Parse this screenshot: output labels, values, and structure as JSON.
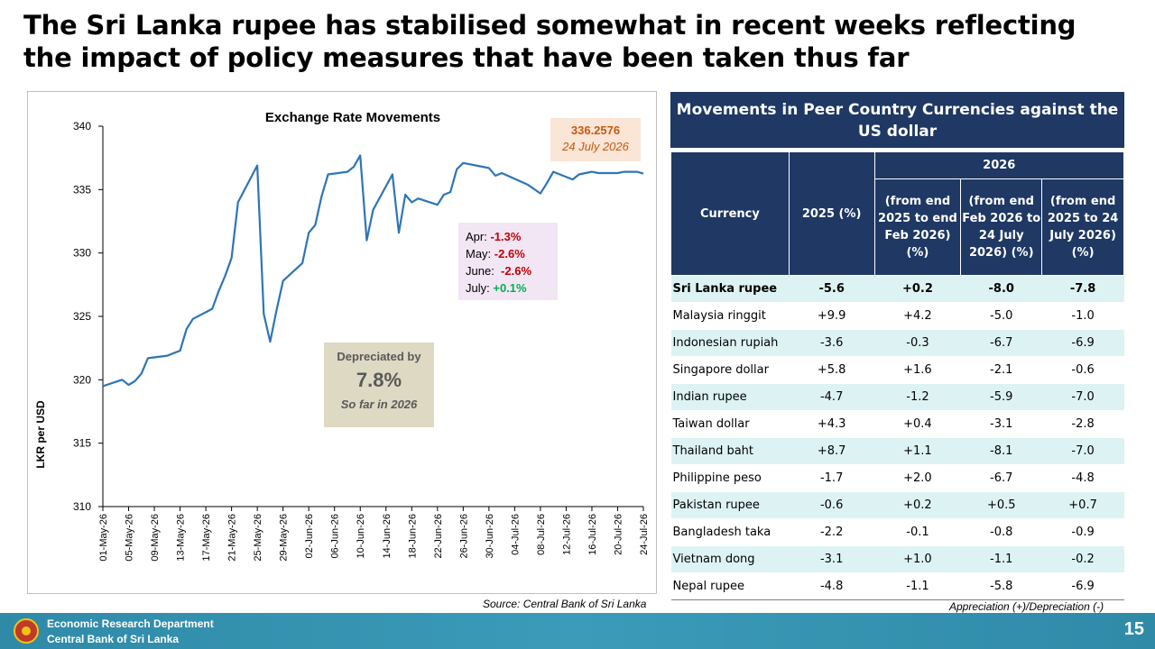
{
  "headline": {
    "line1": "The Sri Lanka rupee has stabilised somewhat in recent weeks reflecting",
    "line2": "the impact of policy measures that have been taken thus far"
  },
  "chart_data": {
    "type": "line",
    "title": "Exchange Rate Movements",
    "ylabel": "LKR per USD",
    "xlabel": "",
    "ylim": [
      310,
      340
    ],
    "yticks": [
      "310",
      "315",
      "320",
      "325",
      "330",
      "335",
      "340"
    ],
    "x_tick_labels": [
      "01-May-26",
      "05-May-26",
      "09-May-26",
      "13-May-26",
      "17-May-26",
      "21-May-26",
      "25-May-26",
      "29-May-26",
      "02-Jun-26",
      "06-Jun-26",
      "10-Jun-26",
      "14-Jun-26",
      "18-Jun-26",
      "22-Jun-26",
      "26-Jun-26",
      "30-Jun-26",
      "04-Jul-26",
      "08-Jul-26",
      "12-Jul-26",
      "16-Jul-26",
      "20-Jul-26",
      "24-Jul-26"
    ],
    "series": [
      {
        "color": "#2e75b6",
        "points": [
          {
            "x": "2026-05-01",
            "y": 319.5
          },
          {
            "x": "2026-05-04",
            "y": 320.0
          },
          {
            "x": "2026-05-05",
            "y": 319.6
          },
          {
            "x": "2026-05-06",
            "y": 319.9
          },
          {
            "x": "2026-05-07",
            "y": 320.5
          },
          {
            "x": "2026-05-08",
            "y": 321.7
          },
          {
            "x": "2026-05-11",
            "y": 321.9
          },
          {
            "x": "2026-05-12",
            "y": 322.1
          },
          {
            "x": "2026-05-13",
            "y": 322.3
          },
          {
            "x": "2026-05-14",
            "y": 324.0
          },
          {
            "x": "2026-05-15",
            "y": 324.8
          },
          {
            "x": "2026-05-18",
            "y": 325.6
          },
          {
            "x": "2026-05-19",
            "y": 327.0
          },
          {
            "x": "2026-05-20",
            "y": 328.2
          },
          {
            "x": "2026-05-21",
            "y": 329.6
          },
          {
            "x": "2026-05-22",
            "y": 334.0
          },
          {
            "x": "2026-05-25",
            "y": 336.9
          },
          {
            "x": "2026-05-26",
            "y": 325.2
          },
          {
            "x": "2026-05-27",
            "y": 323.0
          },
          {
            "x": "2026-05-28",
            "y": 325.5
          },
          {
            "x": "2026-05-29",
            "y": 327.8
          },
          {
            "x": "2026-06-01",
            "y": 329.2
          },
          {
            "x": "2026-06-02",
            "y": 331.6
          },
          {
            "x": "2026-06-03",
            "y": 332.2
          },
          {
            "x": "2026-06-04",
            "y": 334.5
          },
          {
            "x": "2026-06-05",
            "y": 336.2
          },
          {
            "x": "2026-06-08",
            "y": 336.4
          },
          {
            "x": "2026-06-09",
            "y": 336.8
          },
          {
            "x": "2026-06-10",
            "y": 337.7
          },
          {
            "x": "2026-06-11",
            "y": 331.0
          },
          {
            "x": "2026-06-12",
            "y": 333.4
          },
          {
            "x": "2026-06-15",
            "y": 336.2
          },
          {
            "x": "2026-06-16",
            "y": 331.6
          },
          {
            "x": "2026-06-17",
            "y": 334.6
          },
          {
            "x": "2026-06-18",
            "y": 334.0
          },
          {
            "x": "2026-06-19",
            "y": 334.3
          },
          {
            "x": "2026-06-22",
            "y": 333.8
          },
          {
            "x": "2026-06-23",
            "y": 334.6
          },
          {
            "x": "2026-06-24",
            "y": 334.8
          },
          {
            "x": "2026-06-25",
            "y": 336.6
          },
          {
            "x": "2026-06-26",
            "y": 337.1
          },
          {
            "x": "2026-06-29",
            "y": 336.8
          },
          {
            "x": "2026-06-30",
            "y": 336.7
          },
          {
            "x": "2026-07-01",
            "y": 336.1
          },
          {
            "x": "2026-07-02",
            "y": 336.3
          },
          {
            "x": "2026-07-06",
            "y": 335.4
          },
          {
            "x": "2026-07-08",
            "y": 334.7
          },
          {
            "x": "2026-07-09",
            "y": 335.5
          },
          {
            "x": "2026-07-10",
            "y": 336.4
          },
          {
            "x": "2026-07-13",
            "y": 335.8
          },
          {
            "x": "2026-07-14",
            "y": 336.2
          },
          {
            "x": "2026-07-15",
            "y": 336.3
          },
          {
            "x": "2026-07-16",
            "y": 336.4
          },
          {
            "x": "2026-07-17",
            "y": 336.3
          },
          {
            "x": "2026-07-20",
            "y": 336.3
          },
          {
            "x": "2026-07-21",
            "y": 336.4
          },
          {
            "x": "2026-07-22",
            "y": 336.4
          },
          {
            "x": "2026-07-23",
            "y": 336.4
          },
          {
            "x": "2026-07-24",
            "y": 336.2576
          }
        ]
      }
    ]
  },
  "annotations": {
    "latest_value": "336.2576",
    "latest_date": "24 July 2026",
    "monthly": [
      {
        "label": "Apr:",
        "value": "-1.3%",
        "sign": "neg"
      },
      {
        "label": "May:",
        "value": "-2.6%",
        "sign": "neg"
      },
      {
        "label": "June:",
        "value": "-2.6%",
        "sign": "neg"
      },
      {
        "label": "July:",
        "value": "+0.1%",
        "sign": "pos"
      }
    ],
    "depreciation_title": "Depreciated by",
    "depreciation_value": "7.8%",
    "depreciation_note": "So far in 2026"
  },
  "source": "Source: Central Bank of Sri Lanka",
  "table": {
    "title": "Movements in Peer Country Currencies against the US dollar",
    "col_currency": "Currency",
    "col_2025": "2025 (%)",
    "group_2026": "2026",
    "sub_headers": [
      "(from end 2025 to end Feb 2026) (%)",
      "(from end Feb 2026 to 24 July 2026) (%)",
      "(from end 2025 to 24 July 2026) (%)"
    ],
    "rows": [
      {
        "name": "Sri Lanka rupee",
        "y2025": "-5.6",
        "c1": "+0.2",
        "c2": "-8.0",
        "c3": "-7.8"
      },
      {
        "name": "Malaysia ringgit",
        "y2025": "+9.9",
        "c1": "+4.2",
        "c2": "-5.0",
        "c3": "-1.0"
      },
      {
        "name": "Indonesian rupiah",
        "y2025": "-3.6",
        "c1": "-0.3",
        "c2": "-6.7",
        "c3": "-6.9"
      },
      {
        "name": "Singapore dollar",
        "y2025": "+5.8",
        "c1": "+1.6",
        "c2": "-2.1",
        "c3": "-0.6"
      },
      {
        "name": "Indian rupee",
        "y2025": "-4.7",
        "c1": "-1.2",
        "c2": "-5.9",
        "c3": "-7.0"
      },
      {
        "name": "Taiwan dollar",
        "y2025": "+4.3",
        "c1": "+0.4",
        "c2": "-3.1",
        "c3": "-2.8"
      },
      {
        "name": "Thailand baht",
        "y2025": "+8.7",
        "c1": "+1.1",
        "c2": "-8.1",
        "c3": "-7.0"
      },
      {
        "name": "Philippine peso",
        "y2025": "-1.7",
        "c1": "+2.0",
        "c2": "-6.7",
        "c3": "-4.8"
      },
      {
        "name": "Pakistan rupee",
        "y2025": "-0.6",
        "c1": "+0.2",
        "c2": "+0.5",
        "c3": "+0.7"
      },
      {
        "name": "Bangladesh taka",
        "y2025": "-2.2",
        "c1": "-0.1",
        "c2": "-0.8",
        "c3": "-0.9"
      },
      {
        "name": "Vietnam dong",
        "y2025": "-3.1",
        "c1": "+1.0",
        "c2": "-1.1",
        "c3": "-0.2"
      },
      {
        "name": "Nepal rupee",
        "y2025": "-4.8",
        "c1": "-1.1",
        "c2": "-5.8",
        "c3": "-6.9"
      }
    ],
    "footnote": "Appreciation (+)/Depreciation (-)"
  },
  "footer": {
    "line1": "Economic Research Department",
    "line2": "Central Bank of Sri Lanka",
    "page_number": "15"
  }
}
